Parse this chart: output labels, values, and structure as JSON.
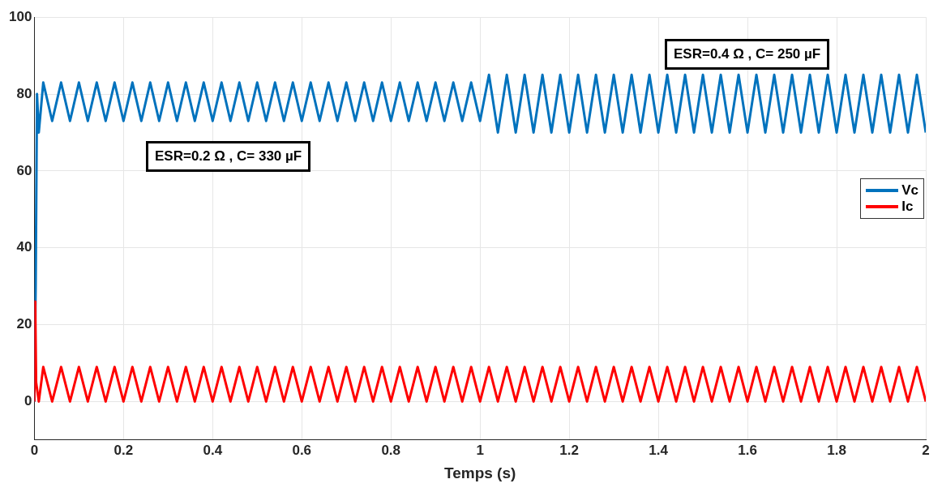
{
  "chart_data": {
    "type": "line",
    "xlabel": "Temps (s)",
    "xlim": [
      0,
      2
    ],
    "xticks": [
      0,
      0.2,
      0.4,
      0.6,
      0.8,
      1,
      1.2,
      1.4,
      1.6,
      1.8,
      2
    ],
    "ylim": [
      -10,
      100
    ],
    "yticks": [
      0,
      20,
      40,
      60,
      80,
      100
    ],
    "grid": true,
    "legend": "right",
    "marker": "none",
    "line_style": "solid",
    "annotations": [
      "ESR=0.4 Ω , C= 250 µF",
      "ESR=0.2 Ω , C= 330 µF"
    ],
    "series": [
      {
        "name": "Vc",
        "color": "#0072bd",
        "x": [
          0,
          0.003,
          0.006,
          0.01,
          0.02,
          0.04,
          0.06,
          0.08,
          0.1,
          0.12,
          0.14,
          0.16,
          0.18,
          0.2,
          0.22,
          0.24,
          0.26,
          0.28,
          0.3,
          0.32,
          0.34,
          0.36,
          0.38,
          0.4,
          0.42,
          0.44,
          0.46,
          0.48,
          0.5,
          0.52,
          0.54,
          0.56,
          0.58,
          0.6,
          0.62,
          0.64,
          0.66,
          0.68,
          0.7,
          0.72,
          0.74,
          0.76,
          0.78,
          0.8,
          0.82,
          0.84,
          0.86,
          0.88,
          0.9,
          0.92,
          0.94,
          0.96,
          0.98,
          1,
          1.02,
          1.04,
          1.06,
          1.08,
          1.1,
          1.12,
          1.14,
          1.16,
          1.18,
          1.2,
          1.22,
          1.24,
          1.26,
          1.28,
          1.3,
          1.32,
          1.34,
          1.36,
          1.38,
          1.4,
          1.42,
          1.44,
          1.46,
          1.48,
          1.5,
          1.52,
          1.54,
          1.56,
          1.58,
          1.6,
          1.62,
          1.64,
          1.66,
          1.68,
          1.7,
          1.72,
          1.74,
          1.76,
          1.78,
          1.8,
          1.82,
          1.84,
          1.86,
          1.88,
          1.9,
          1.92,
          1.94,
          1.96,
          1.98,
          2
        ],
        "values": [
          0,
          30,
          80,
          70,
          83,
          73,
          83,
          73,
          83,
          73,
          83,
          73,
          83,
          73,
          83,
          73,
          83,
          73,
          83,
          73,
          83,
          73,
          83,
          73,
          83,
          73,
          83,
          73,
          83,
          73,
          83,
          73,
          83,
          73,
          83,
          73,
          83,
          73,
          83,
          73,
          83,
          73,
          83,
          73,
          83,
          73,
          83,
          73,
          83,
          73,
          83,
          73,
          83,
          73,
          85,
          70,
          85,
          70,
          85,
          70,
          85,
          70,
          85,
          70,
          85,
          70,
          85,
          70,
          85,
          70,
          85,
          70,
          85,
          70,
          85,
          70,
          85,
          70,
          85,
          70,
          85,
          70,
          85,
          70,
          85,
          70,
          85,
          70,
          85,
          70,
          85,
          70,
          85,
          70,
          85,
          70,
          85,
          70,
          85,
          70,
          85,
          70,
          85,
          70
        ]
      },
      {
        "name": "Ic",
        "color": "#ff0000",
        "x": [
          0,
          0.002,
          0.004,
          0.01,
          0.02,
          0.04,
          0.06,
          0.08,
          0.1,
          0.12,
          0.14,
          0.16,
          0.18,
          0.2,
          0.22,
          0.24,
          0.26,
          0.28,
          0.3,
          0.32,
          0.34,
          0.36,
          0.38,
          0.4,
          0.42,
          0.44,
          0.46,
          0.48,
          0.5,
          0.52,
          0.54,
          0.56,
          0.58,
          0.6,
          0.62,
          0.64,
          0.66,
          0.68,
          0.7,
          0.72,
          0.74,
          0.76,
          0.78,
          0.8,
          0.82,
          0.84,
          0.86,
          0.88,
          0.9,
          0.92,
          0.94,
          0.96,
          0.98,
          1,
          1.02,
          1.04,
          1.06,
          1.08,
          1.1,
          1.12,
          1.14,
          1.16,
          1.18,
          1.2,
          1.22,
          1.24,
          1.26,
          1.28,
          1.3,
          1.32,
          1.34,
          1.36,
          1.38,
          1.4,
          1.42,
          1.44,
          1.46,
          1.48,
          1.5,
          1.52,
          1.54,
          1.56,
          1.58,
          1.6,
          1.62,
          1.64,
          1.66,
          1.68,
          1.7,
          1.72,
          1.74,
          1.76,
          1.78,
          1.8,
          1.82,
          1.84,
          1.86,
          1.88,
          1.9,
          1.92,
          1.94,
          1.96,
          1.98,
          2
        ],
        "values": [
          0,
          26,
          5,
          0,
          9,
          0,
          9,
          0,
          9,
          0,
          9,
          0,
          9,
          0,
          9,
          0,
          9,
          0,
          9,
          0,
          9,
          0,
          9,
          0,
          9,
          0,
          9,
          0,
          9,
          0,
          9,
          0,
          9,
          0,
          9,
          0,
          9,
          0,
          9,
          0,
          9,
          0,
          9,
          0,
          9,
          0,
          9,
          0,
          9,
          0,
          9,
          0,
          9,
          0,
          9,
          0,
          9,
          0,
          9,
          0,
          9,
          0,
          9,
          0,
          9,
          0,
          9,
          0,
          9,
          0,
          9,
          0,
          9,
          0,
          9,
          0,
          9,
          0,
          9,
          0,
          9,
          0,
          9,
          0,
          9,
          0,
          9,
          0,
          9,
          0,
          9,
          0,
          9,
          0,
          9,
          0,
          9,
          0,
          9,
          0,
          9,
          0,
          9,
          0
        ]
      }
    ]
  }
}
